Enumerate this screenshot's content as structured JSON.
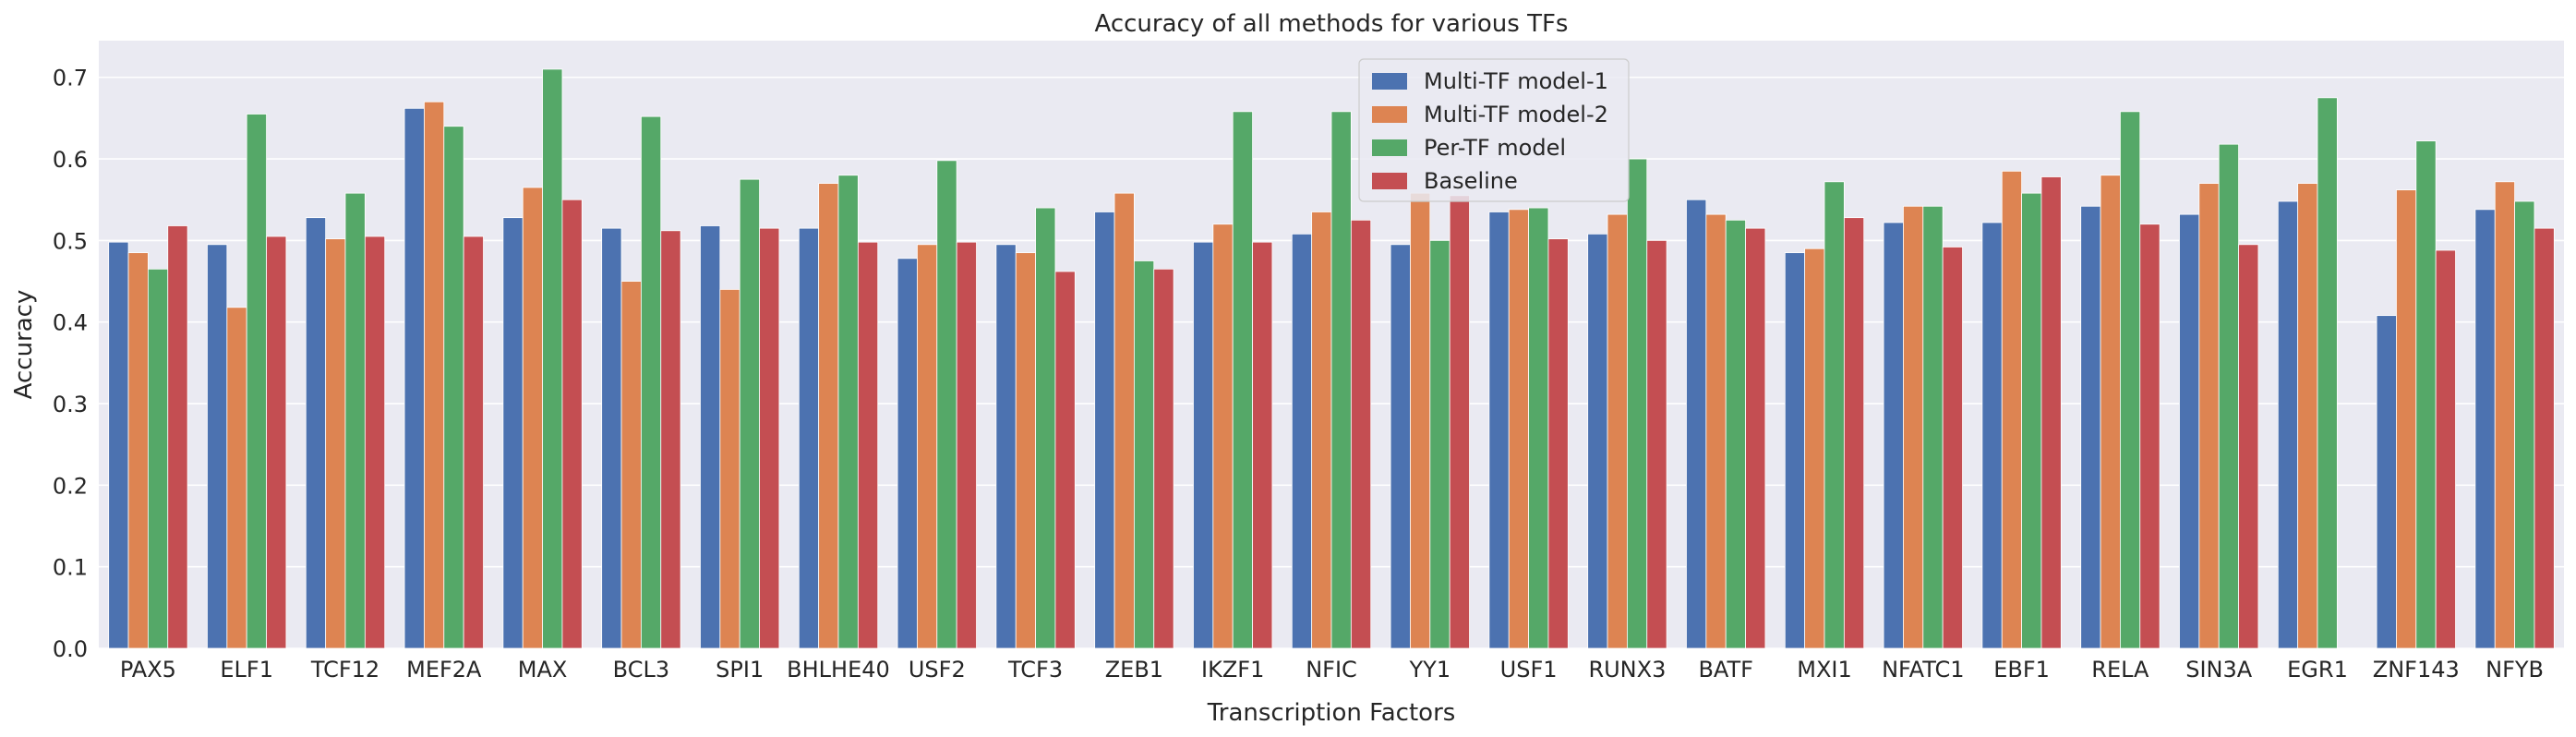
{
  "chart_data": {
    "type": "bar",
    "title": "Accuracy of all methods for various TFs",
    "xlabel": "Transcription Factors",
    "ylabel": "Accuracy",
    "ylim": [
      0,
      0.745
    ],
    "yticks": [
      "0.0",
      "0.1",
      "0.2",
      "0.3",
      "0.4",
      "0.5",
      "0.6",
      "0.7"
    ],
    "grid": true,
    "legend_position": "top-center",
    "categories": [
      "PAX5",
      "ELF1",
      "TCF12",
      "MEF2A",
      "MAX",
      "BCL3",
      "SPI1",
      "BHLHE40",
      "USF2",
      "TCF3",
      "ZEB1",
      "IKZF1",
      "NFIC",
      "YY1",
      "USF1",
      "RUNX3",
      "BATF",
      "MXI1",
      "NFATC1",
      "EBF1",
      "RELA",
      "SIN3A",
      "EGR1",
      "ZNF143",
      "NFYB"
    ],
    "series": [
      {
        "name": "Multi-TF model-1",
        "color": "#4c72b0",
        "values": [
          0.498,
          0.495,
          0.528,
          0.662,
          0.528,
          0.515,
          0.518,
          0.515,
          0.478,
          0.495,
          0.535,
          0.498,
          0.508,
          0.495,
          0.535,
          0.508,
          0.55,
          0.485,
          0.522,
          0.522,
          0.542,
          0.532,
          0.548,
          0.408,
          0.538
        ]
      },
      {
        "name": "Multi-TF model-2",
        "color": "#dd8452",
        "values": [
          0.485,
          0.418,
          0.502,
          0.67,
          0.565,
          0.45,
          0.44,
          0.57,
          0.495,
          0.485,
          0.558,
          0.52,
          0.535,
          0.558,
          0.538,
          0.532,
          0.532,
          0.49,
          0.542,
          0.585,
          0.58,
          0.57,
          0.57,
          0.562,
          0.572
        ]
      },
      {
        "name": "Per-TF model",
        "color": "#55a868",
        "values": [
          0.465,
          0.655,
          0.558,
          0.64,
          0.71,
          0.652,
          0.575,
          0.58,
          0.598,
          0.54,
          0.475,
          0.658,
          0.658,
          0.5,
          0.54,
          0.6,
          0.525,
          0.572,
          0.542,
          0.558,
          0.658,
          0.618,
          0.675,
          0.622,
          0.548
        ]
      },
      {
        "name": "Baseline",
        "color": "#c44e52",
        "values": [
          0.518,
          0.505,
          0.505,
          0.505,
          0.55,
          0.512,
          0.515,
          0.498,
          0.498,
          0.462,
          0.465,
          0.498,
          0.525,
          0.555,
          0.502,
          0.5,
          0.515,
          0.528,
          0.492,
          0.578,
          0.52,
          0.495,
          null,
          0.488,
          0.515
        ]
      }
    ]
  }
}
